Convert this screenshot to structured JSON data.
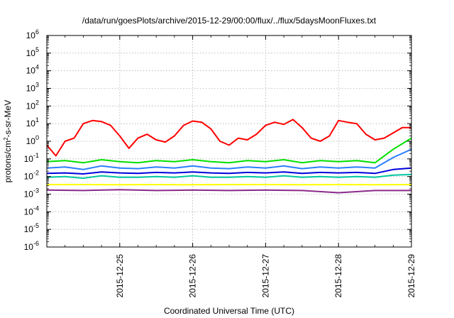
{
  "chart_data": {
    "type": "line",
    "title": "/data/run/goesPlots/archive/2015-12-29/00:00/flux/../flux/5daysMoonFluxes.txt",
    "xlabel": "Coordinated Universal Time (UTC)",
    "ylabel": {
      "base": "protons/cm",
      "sup": "2",
      "rest": "-s-sr-MeV"
    },
    "x_range": [
      "2015-12-24T00:00",
      "2015-12-29T00:00"
    ],
    "x_ticks": [
      "2015-12-25",
      "2015-12-26",
      "2015-12-27",
      "2015-12-28",
      "2015-12-29"
    ],
    "y_scale": "log",
    "ylim": [
      1e-06,
      1000000.0
    ],
    "y_ticks": [
      {
        "value": 1e-06,
        "base": "10",
        "exp": "-6"
      },
      {
        "value": 1e-05,
        "base": "10",
        "exp": "-5"
      },
      {
        "value": 0.0001,
        "base": "10",
        "exp": "-4"
      },
      {
        "value": 0.001,
        "base": "10",
        "exp": "-3"
      },
      {
        "value": 0.01,
        "base": "10",
        "exp": "-2"
      },
      {
        "value": 0.1,
        "base": "10",
        "exp": "-1"
      },
      {
        "value": 1,
        "base": "10",
        "exp": "0"
      },
      {
        "value": 10,
        "base": "10",
        "exp": "1"
      },
      {
        "value": 100,
        "base": "10",
        "exp": "2"
      },
      {
        "value": 1000,
        "base": "10",
        "exp": "3"
      },
      {
        "value": 10000,
        "base": "10",
        "exp": "4"
      },
      {
        "value": 100000,
        "base": "10",
        "exp": "5"
      },
      {
        "value": 1000000,
        "base": "10",
        "exp": "6"
      }
    ],
    "grid": true,
    "legend": "none",
    "series": [
      {
        "color": "#ff0000",
        "x": [
          "2015-12-24T00:00",
          "2015-12-24T03:00",
          "2015-12-24T06:00",
          "2015-12-24T09:00",
          "2015-12-24T12:00",
          "2015-12-24T15:00",
          "2015-12-24T18:00",
          "2015-12-24T21:00",
          "2015-12-25T00:00",
          "2015-12-25T03:00",
          "2015-12-25T06:00",
          "2015-12-25T09:00",
          "2015-12-25T12:00",
          "2015-12-25T15:00",
          "2015-12-25T18:00",
          "2015-12-25T21:00",
          "2015-12-26T00:00",
          "2015-12-26T03:00",
          "2015-12-26T06:00",
          "2015-12-26T09:00",
          "2015-12-26T12:00",
          "2015-12-26T15:00",
          "2015-12-26T18:00",
          "2015-12-26T21:00",
          "2015-12-27T00:00",
          "2015-12-27T03:00",
          "2015-12-27T06:00",
          "2015-12-27T09:00",
          "2015-12-27T12:00",
          "2015-12-27T15:00",
          "2015-12-27T18:00",
          "2015-12-27T21:00",
          "2015-12-28T00:00",
          "2015-12-28T03:00",
          "2015-12-28T06:00",
          "2015-12-28T09:00",
          "2015-12-28T12:00",
          "2015-12-28T15:00",
          "2015-12-28T18:00",
          "2015-12-28T21:00",
          "2015-12-29T00:00"
        ],
        "y": [
          0.6,
          0.15,
          1.0,
          1.5,
          10,
          15,
          13,
          8,
          2.0,
          0.4,
          1.5,
          2.5,
          1.2,
          0.9,
          2.0,
          8,
          14,
          12,
          5,
          1.0,
          0.6,
          1.5,
          1.2,
          2.5,
          8,
          12,
          9,
          17,
          6,
          1.5,
          1.0,
          2.0,
          15,
          12,
          10,
          2.5,
          1.2,
          1.5,
          3,
          6,
          6
        ]
      },
      {
        "color": "#00e000",
        "x": [
          "2015-12-24T00:00",
          "2015-12-24T06:00",
          "2015-12-24T12:00",
          "2015-12-24T18:00",
          "2015-12-25T00:00",
          "2015-12-25T06:00",
          "2015-12-25T12:00",
          "2015-12-25T18:00",
          "2015-12-26T00:00",
          "2015-12-26T06:00",
          "2015-12-26T12:00",
          "2015-12-26T18:00",
          "2015-12-27T00:00",
          "2015-12-27T06:00",
          "2015-12-27T12:00",
          "2015-12-27T18:00",
          "2015-12-28T00:00",
          "2015-12-28T06:00",
          "2015-12-28T12:00",
          "2015-12-28T18:00",
          "2015-12-29T00:00"
        ],
        "y": [
          0.07,
          0.08,
          0.06,
          0.09,
          0.07,
          0.06,
          0.08,
          0.07,
          0.09,
          0.07,
          0.06,
          0.08,
          0.07,
          0.09,
          0.06,
          0.08,
          0.07,
          0.08,
          0.06,
          0.35,
          1.5
        ]
      },
      {
        "color": "#2a7fff",
        "x": [
          "2015-12-24T00:00",
          "2015-12-24T06:00",
          "2015-12-24T12:00",
          "2015-12-24T18:00",
          "2015-12-25T00:00",
          "2015-12-25T06:00",
          "2015-12-25T12:00",
          "2015-12-25T18:00",
          "2015-12-26T00:00",
          "2015-12-26T06:00",
          "2015-12-26T12:00",
          "2015-12-26T18:00",
          "2015-12-27T00:00",
          "2015-12-27T06:00",
          "2015-12-27T12:00",
          "2015-12-27T18:00",
          "2015-12-28T00:00",
          "2015-12-28T06:00",
          "2015-12-28T12:00",
          "2015-12-28T18:00",
          "2015-12-29T00:00"
        ],
        "y": [
          0.03,
          0.035,
          0.025,
          0.04,
          0.03,
          0.028,
          0.035,
          0.03,
          0.04,
          0.03,
          0.028,
          0.035,
          0.03,
          0.04,
          0.028,
          0.035,
          0.03,
          0.035,
          0.03,
          0.12,
          0.35
        ]
      },
      {
        "color": "#0000dd",
        "x": [
          "2015-12-24T00:00",
          "2015-12-24T06:00",
          "2015-12-24T12:00",
          "2015-12-24T18:00",
          "2015-12-25T00:00",
          "2015-12-25T06:00",
          "2015-12-25T12:00",
          "2015-12-25T18:00",
          "2015-12-26T00:00",
          "2015-12-26T06:00",
          "2015-12-26T12:00",
          "2015-12-26T18:00",
          "2015-12-27T00:00",
          "2015-12-27T06:00",
          "2015-12-27T12:00",
          "2015-12-27T18:00",
          "2015-12-28T00:00",
          "2015-12-28T06:00",
          "2015-12-28T12:00",
          "2015-12-28T18:00",
          "2015-12-29T00:00"
        ],
        "y": [
          0.015,
          0.016,
          0.014,
          0.018,
          0.016,
          0.015,
          0.017,
          0.016,
          0.018,
          0.016,
          0.015,
          0.017,
          0.016,
          0.018,
          0.015,
          0.017,
          0.016,
          0.017,
          0.015,
          0.025,
          0.03
        ]
      },
      {
        "color": "#00c8a0",
        "x": [
          "2015-12-24T00:00",
          "2015-12-24T06:00",
          "2015-12-24T12:00",
          "2015-12-24T18:00",
          "2015-12-25T00:00",
          "2015-12-25T06:00",
          "2015-12-25T12:00",
          "2015-12-25T18:00",
          "2015-12-26T00:00",
          "2015-12-26T06:00",
          "2015-12-26T12:00",
          "2015-12-26T18:00",
          "2015-12-27T00:00",
          "2015-12-27T06:00",
          "2015-12-27T12:00",
          "2015-12-27T18:00",
          "2015-12-28T00:00",
          "2015-12-28T06:00",
          "2015-12-28T12:00",
          "2015-12-28T18:00",
          "2015-12-29T00:00"
        ],
        "y": [
          0.009,
          0.01,
          0.008,
          0.011,
          0.009,
          0.009,
          0.01,
          0.009,
          0.011,
          0.009,
          0.009,
          0.01,
          0.009,
          0.011,
          0.009,
          0.01,
          0.009,
          0.01,
          0.009,
          0.012,
          0.013
        ]
      },
      {
        "color": "#ffff00",
        "x": [
          "2015-12-24T00:00",
          "2015-12-24T12:00",
          "2015-12-25T00:00",
          "2015-12-25T12:00",
          "2015-12-26T00:00",
          "2015-12-26T12:00",
          "2015-12-27T00:00",
          "2015-12-27T12:00",
          "2015-12-28T00:00",
          "2015-12-28T12:00",
          "2015-12-29T00:00"
        ],
        "y": [
          0.0035,
          0.0035,
          0.0034,
          0.0035,
          0.0034,
          0.0035,
          0.0035,
          0.0034,
          0.0035,
          0.0034,
          0.0035
        ]
      },
      {
        "color": "#8b2a8b",
        "x": [
          "2015-12-24T00:00",
          "2015-12-24T12:00",
          "2015-12-25T00:00",
          "2015-12-25T12:00",
          "2015-12-26T00:00",
          "2015-12-26T12:00",
          "2015-12-27T00:00",
          "2015-12-27T12:00",
          "2015-12-28T00:00",
          "2015-12-28T12:00",
          "2015-12-29T00:00"
        ],
        "y": [
          0.0017,
          0.0016,
          0.0018,
          0.0016,
          0.0017,
          0.0016,
          0.0017,
          0.0016,
          0.0012,
          0.0016,
          0.0016
        ]
      }
    ]
  }
}
